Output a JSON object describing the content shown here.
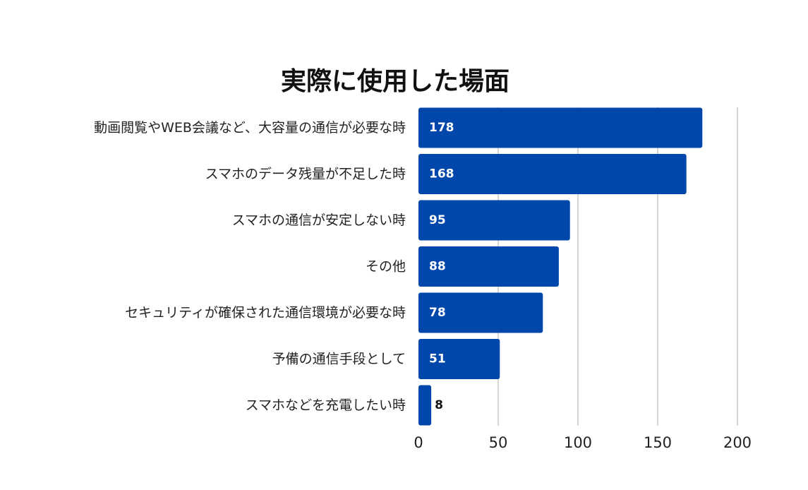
{
  "chart_data": {
    "type": "bar",
    "orientation": "horizontal",
    "title": "実際に使用した場面",
    "categories": [
      "動画閲覧やWEB会議など、大容量の通信が必要な時",
      "スマホのデータ残量が不足した時",
      "スマホの通信が安定しない時",
      "その他",
      "セキュリティが確保された通信環境が必要な時",
      "予備の通信手段として",
      "スマホなどを充電したい時"
    ],
    "values": [
      178,
      168,
      95,
      88,
      78,
      51,
      8
    ],
    "xlim": [
      0,
      200
    ],
    "xticks": [
      0,
      50,
      100,
      150,
      200
    ],
    "grid": true,
    "legend": "none",
    "bar_color": "#0047ab",
    "value_label_color_inside": "#ffffff",
    "value_label_color_outside": "#111111"
  }
}
